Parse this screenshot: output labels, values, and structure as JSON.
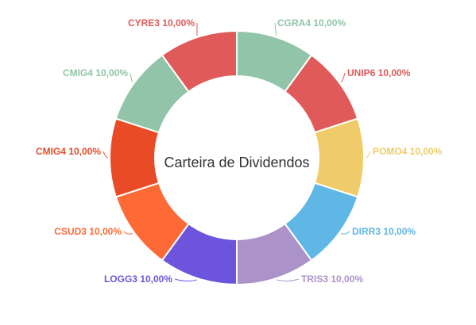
{
  "chart_data": {
    "type": "pie",
    "title": "Carteira de Dividendos",
    "categories": [
      "CGRA4",
      "UNIP6",
      "POMO4",
      "DIRR3",
      "TRIS3",
      "LOGG3",
      "CSUD3",
      "CMIG4",
      "CMIG4",
      "CYRE3"
    ],
    "values": [
      10,
      10,
      10,
      10,
      10,
      10,
      10,
      10,
      10,
      10
    ],
    "labels": [
      "CGRA4 10,00%",
      "UNIP6 10,00%",
      "POMO4 10,00%",
      "DIRR3 10,00%",
      "TRIS3 10,00%",
      "LOGG3 10,00%",
      "CSUD3 10,00%",
      "CMIG4 10,00%",
      "CMIG4 10,00%",
      "CYRE3 10,00%"
    ],
    "colors": [
      "#91C4A8",
      "#E05A5A",
      "#F0CB69",
      "#5EB7E5",
      "#AB92C8",
      "#6C54DC",
      "#FD6A36",
      "#E84B25",
      "#91C4A8",
      "#E05A5A"
    ],
    "legend": "none"
  }
}
